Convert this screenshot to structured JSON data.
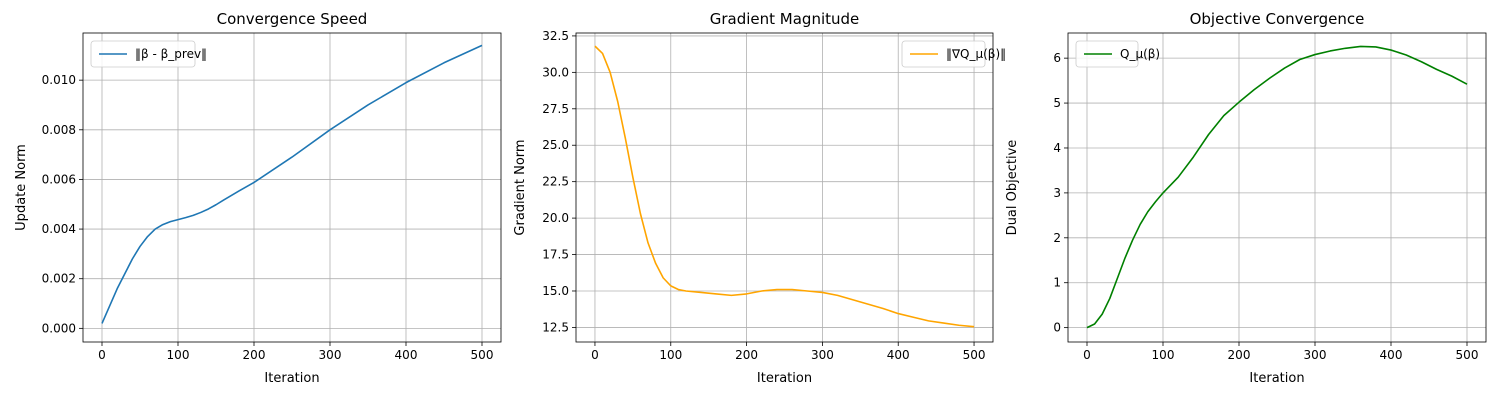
{
  "figure": {
    "grid": true,
    "colors": {
      "grid": "#b0b0b0",
      "frame": "#000000",
      "legend_border": "#cccccc"
    }
  },
  "chart_data": [
    {
      "type": "line",
      "title": "Convergence Speed",
      "xlabel": "Iteration",
      "ylabel": "Update Norm",
      "xlim": [
        -25,
        525
      ],
      "ylim": [
        -0.00055,
        0.0119
      ],
      "x_ticks": [
        0,
        100,
        200,
        300,
        400,
        500
      ],
      "x_tick_labels": [
        "0",
        "100",
        "200",
        "300",
        "400",
        "500"
      ],
      "y_ticks": [
        0.0,
        0.002,
        0.004,
        0.006,
        0.008,
        0.01
      ],
      "y_tick_labels": [
        "0.000",
        "0.002",
        "0.004",
        "0.006",
        "0.008",
        "0.010"
      ],
      "grid": true,
      "legend_position": "upper-left",
      "series": [
        {
          "name": "‖β - β_prev‖",
          "color": "#1f77b4",
          "x": [
            0,
            10,
            20,
            30,
            40,
            50,
            60,
            70,
            80,
            90,
            100,
            110,
            120,
            130,
            140,
            150,
            160,
            180,
            200,
            250,
            300,
            350,
            400,
            450,
            500
          ],
          "y": [
            0.0002,
            0.0009,
            0.0016,
            0.0022,
            0.0028,
            0.0033,
            0.0037,
            0.004,
            0.00418,
            0.0043,
            0.00438,
            0.00446,
            0.00455,
            0.00467,
            0.00481,
            0.00498,
            0.00517,
            0.00553,
            0.00588,
            0.0069,
            0.008,
            0.009,
            0.0099,
            0.0107,
            0.0114
          ]
        }
      ]
    },
    {
      "type": "line",
      "title": "Gradient Magnitude",
      "xlabel": "Iteration",
      "ylabel": "Gradient Norm",
      "xlim": [
        -25,
        525
      ],
      "ylim": [
        11.5,
        32.7
      ],
      "x_ticks": [
        0,
        100,
        200,
        300,
        400,
        500
      ],
      "x_tick_labels": [
        "0",
        "100",
        "200",
        "300",
        "400",
        "500"
      ],
      "y_ticks": [
        12.5,
        15.0,
        17.5,
        20.0,
        22.5,
        25.0,
        27.5,
        30.0,
        32.5
      ],
      "y_tick_labels": [
        "12.5",
        "15.0",
        "17.5",
        "20.0",
        "22.5",
        "25.0",
        "27.5",
        "30.0",
        "32.5"
      ],
      "grid": true,
      "legend_position": "upper-right",
      "series": [
        {
          "name": "‖∇Q_μ(β)‖",
          "color": "#ffa500",
          "x": [
            0,
            10,
            20,
            30,
            40,
            50,
            60,
            70,
            80,
            90,
            100,
            110,
            120,
            140,
            160,
            180,
            200,
            220,
            240,
            260,
            280,
            300,
            320,
            340,
            360,
            380,
            400,
            420,
            440,
            460,
            480,
            500
          ],
          "y": [
            31.8,
            31.3,
            30.0,
            28.0,
            25.5,
            22.8,
            20.3,
            18.3,
            16.9,
            15.9,
            15.35,
            15.1,
            15.0,
            14.9,
            14.8,
            14.7,
            14.8,
            15.0,
            15.1,
            15.1,
            15.0,
            14.9,
            14.7,
            14.4,
            14.1,
            13.8,
            13.45,
            13.2,
            12.95,
            12.8,
            12.65,
            12.55
          ]
        }
      ]
    },
    {
      "type": "line",
      "title": "Objective Convergence",
      "xlabel": "Iteration",
      "ylabel": "Dual Objective",
      "xlim": [
        -25,
        525
      ],
      "ylim": [
        -0.32,
        6.56
      ],
      "x_ticks": [
        0,
        100,
        200,
        300,
        400,
        500
      ],
      "x_tick_labels": [
        "0",
        "100",
        "200",
        "300",
        "400",
        "500"
      ],
      "y_ticks": [
        0,
        1,
        2,
        3,
        4,
        5,
        6
      ],
      "y_tick_labels": [
        "0",
        "1",
        "2",
        "3",
        "4",
        "5",
        "6"
      ],
      "grid": true,
      "legend_position": "upper-left",
      "series": [
        {
          "name": "Q_μ(β)",
          "color": "#008000",
          "x": [
            0,
            10,
            20,
            30,
            40,
            50,
            60,
            70,
            80,
            90,
            100,
            120,
            140,
            160,
            180,
            200,
            220,
            240,
            260,
            280,
            300,
            320,
            340,
            360,
            380,
            400,
            420,
            440,
            460,
            480,
            500
          ],
          "y": [
            0.0,
            0.08,
            0.3,
            0.65,
            1.1,
            1.55,
            1.95,
            2.3,
            2.58,
            2.8,
            3.0,
            3.35,
            3.8,
            4.3,
            4.72,
            5.02,
            5.3,
            5.55,
            5.78,
            5.97,
            6.08,
            6.16,
            6.22,
            6.26,
            6.25,
            6.18,
            6.07,
            5.92,
            5.75,
            5.6,
            5.42
          ]
        }
      ]
    }
  ]
}
